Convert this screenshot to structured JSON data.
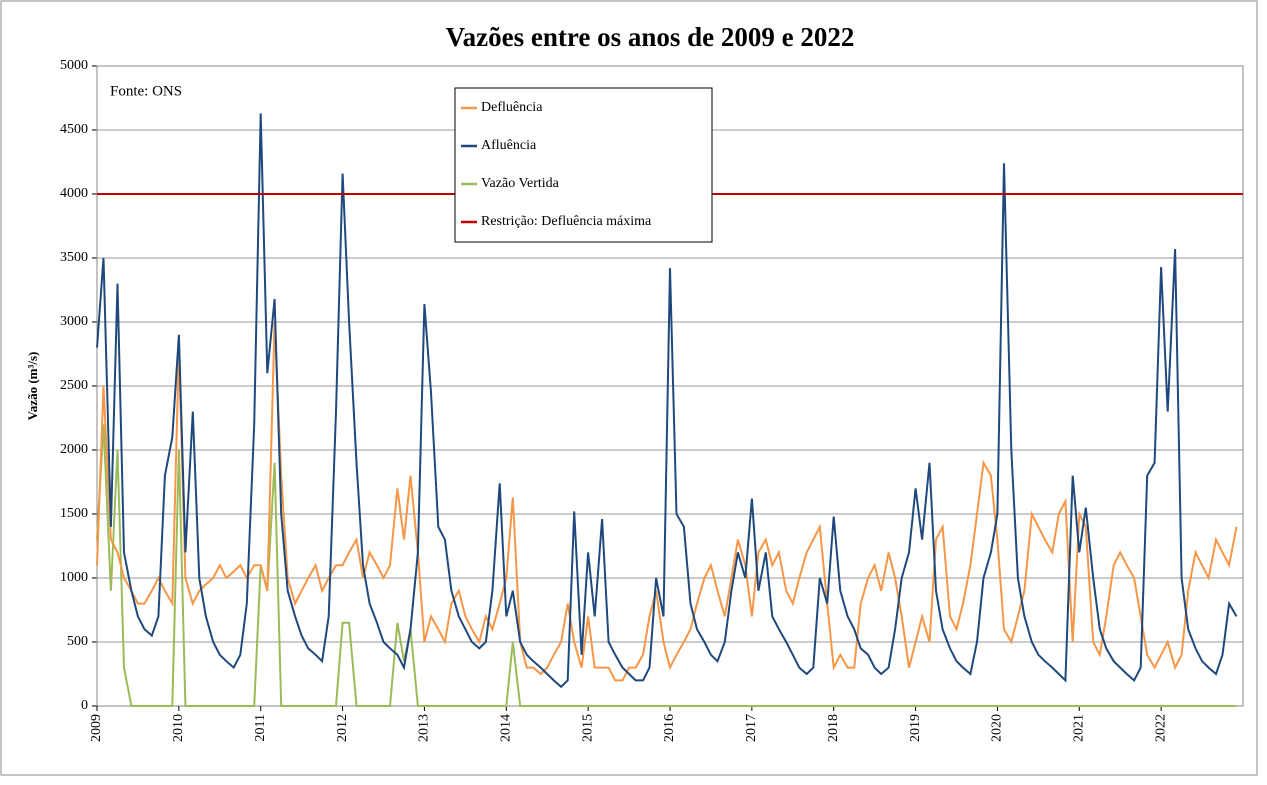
{
  "chart_data": {
    "type": "line",
    "title": "Vazões entre os anos de 2009 e 2022",
    "ylabel": "Vazão (m³/s)",
    "annotation": "Fonte: ONS",
    "x": [
      2009,
      2009.08,
      2009.17,
      2009.25,
      2009.33,
      2009.42,
      2009.5,
      2009.58,
      2009.67,
      2009.75,
      2009.83,
      2009.92,
      2010,
      2010.08,
      2010.17,
      2010.25,
      2010.33,
      2010.42,
      2010.5,
      2010.58,
      2010.67,
      2010.75,
      2010.83,
      2010.92,
      2011,
      2011.08,
      2011.17,
      2011.25,
      2011.33,
      2011.42,
      2011.5,
      2011.58,
      2011.67,
      2011.75,
      2011.83,
      2011.92,
      2012,
      2012.08,
      2012.17,
      2012.25,
      2012.33,
      2012.42,
      2012.5,
      2012.58,
      2012.67,
      2012.75,
      2012.83,
      2012.92,
      2013,
      2013.08,
      2013.17,
      2013.25,
      2013.33,
      2013.42,
      2013.5,
      2013.58,
      2013.67,
      2013.75,
      2013.83,
      2013.92,
      2014,
      2014.08,
      2014.17,
      2014.25,
      2014.33,
      2014.42,
      2014.5,
      2014.58,
      2014.67,
      2014.75,
      2014.83,
      2014.92,
      2015,
      2015.08,
      2015.17,
      2015.25,
      2015.33,
      2015.42,
      2015.5,
      2015.58,
      2015.67,
      2015.75,
      2015.83,
      2015.92,
      2016,
      2016.08,
      2016.17,
      2016.25,
      2016.33,
      2016.42,
      2016.5,
      2016.58,
      2016.67,
      2016.75,
      2016.83,
      2016.92,
      2017,
      2017.08,
      2017.17,
      2017.25,
      2017.33,
      2017.42,
      2017.5,
      2017.58,
      2017.67,
      2017.75,
      2017.83,
      2017.92,
      2018,
      2018.08,
      2018.17,
      2018.25,
      2018.33,
      2018.42,
      2018.5,
      2018.58,
      2018.67,
      2018.75,
      2018.83,
      2018.92,
      2019,
      2019.08,
      2019.17,
      2019.25,
      2019.33,
      2019.42,
      2019.5,
      2019.58,
      2019.67,
      2019.75,
      2019.83,
      2019.92,
      2020,
      2020.08,
      2020.17,
      2020.25,
      2020.33,
      2020.42,
      2020.5,
      2020.58,
      2020.67,
      2020.75,
      2020.83,
      2020.92,
      2021,
      2021.08,
      2021.17,
      2021.25,
      2021.33,
      2021.42,
      2021.5,
      2021.58,
      2021.67,
      2021.75,
      2021.83,
      2021.92,
      2022,
      2022.08,
      2022.17,
      2022.25,
      2022.33,
      2022.42,
      2022.5,
      2022.58,
      2022.67,
      2022.75,
      2022.83,
      2022.92
    ],
    "series": [
      {
        "name": "Defluência",
        "color": "#f79646",
        "values": [
          1100,
          2500,
          1300,
          1200,
          1000,
          900,
          800,
          800,
          900,
          1000,
          900,
          800,
          2800,
          1000,
          800,
          900,
          950,
          1000,
          1100,
          1000,
          1050,
          1100,
          1000,
          1100,
          1100,
          900,
          3000,
          1800,
          1000,
          800,
          900,
          1000,
          1100,
          900,
          1000,
          1100,
          1100,
          1200,
          1300,
          1000,
          1200,
          1100,
          1000,
          1100,
          1700,
          1300,
          1800,
          1200,
          500,
          700,
          600,
          500,
          800,
          900,
          700,
          600,
          500,
          700,
          600,
          800,
          1000,
          1630,
          500,
          300,
          300,
          250,
          300,
          400,
          500,
          800,
          500,
          300,
          700,
          300,
          300,
          300,
          200,
          200,
          300,
          300,
          400,
          700,
          900,
          500,
          300,
          400,
          500,
          600,
          800,
          1000,
          1100,
          900,
          700,
          1000,
          1300,
          1100,
          700,
          1200,
          1300,
          1100,
          1200,
          900,
          800,
          1000,
          1200,
          1300,
          1400,
          800,
          300,
          400,
          300,
          300,
          800,
          1000,
          1100,
          900,
          1200,
          1000,
          700,
          300,
          500,
          700,
          500,
          1300,
          1400,
          700,
          600,
          800,
          1100,
          1500,
          1900,
          1800,
          1300,
          600,
          500,
          700,
          900,
          1500,
          1400,
          1300,
          1200,
          1500,
          1600,
          500,
          1500,
          1400,
          500,
          400,
          700,
          1100,
          1200,
          1100,
          1000,
          700,
          400,
          300,
          400,
          500,
          300,
          400,
          900,
          1200,
          1100,
          1000,
          1300,
          1200,
          1100,
          1400
        ]
      },
      {
        "name": "Afluência",
        "color": "#1f497d",
        "values": [
          2800,
          3500,
          1400,
          3300,
          1200,
          900,
          700,
          600,
          550,
          700,
          1800,
          2100,
          2900,
          1200,
          2300,
          1000,
          700,
          500,
          400,
          350,
          300,
          400,
          800,
          2200,
          4630,
          2600,
          3180,
          1500,
          900,
          700,
          550,
          450,
          400,
          350,
          700,
          2300,
          4160,
          3000,
          1900,
          1100,
          800,
          650,
          500,
          450,
          400,
          300,
          600,
          1200,
          3140,
          2450,
          1400,
          1300,
          900,
          700,
          600,
          500,
          450,
          500,
          900,
          1740,
          700,
          900,
          500,
          400,
          350,
          300,
          250,
          200,
          150,
          200,
          1520,
          400,
          1200,
          700,
          1460,
          500,
          400,
          300,
          250,
          200,
          200,
          300,
          1000,
          700,
          3420,
          1500,
          1400,
          800,
          600,
          500,
          400,
          350,
          500,
          900,
          1200,
          1000,
          1620,
          900,
          1200,
          700,
          600,
          500,
          400,
          300,
          250,
          300,
          1000,
          800,
          1480,
          900,
          700,
          600,
          450,
          400,
          300,
          250,
          300,
          600,
          1000,
          1200,
          1700,
          1300,
          1900,
          900,
          600,
          450,
          350,
          300,
          250,
          500,
          1000,
          1200,
          1500,
          4240,
          2000,
          1000,
          700,
          500,
          400,
          350,
          300,
          250,
          200,
          1800,
          1200,
          1550,
          1000,
          600,
          450,
          350,
          300,
          250,
          200,
          300,
          1800,
          1900,
          3430,
          2300,
          3570,
          1000,
          600,
          450,
          350,
          300,
          250,
          400,
          800,
          700
        ]
      },
      {
        "name": "Vazão Vertida",
        "color": "#9bbb59",
        "values": [
          1300,
          2200,
          900,
          2000,
          300,
          0,
          0,
          0,
          0,
          0,
          0,
          0,
          2000,
          0,
          0,
          0,
          0,
          0,
          0,
          0,
          0,
          0,
          0,
          0,
          1100,
          900,
          1900,
          0,
          0,
          0,
          0,
          0,
          0,
          0,
          0,
          0,
          650,
          650,
          0,
          0,
          0,
          0,
          0,
          0,
          650,
          350,
          600,
          0,
          0,
          0,
          0,
          0,
          0,
          0,
          0,
          0,
          0,
          0,
          0,
          0,
          0,
          500,
          0,
          0,
          0,
          0,
          0,
          0,
          0,
          0,
          0,
          0,
          0,
          0,
          0,
          0,
          0,
          0,
          0,
          0,
          0,
          0,
          0,
          0,
          0,
          0,
          0,
          0,
          0,
          0,
          0,
          0,
          0,
          0,
          0,
          0,
          0,
          0,
          0,
          0,
          0,
          0,
          0,
          0,
          0,
          0,
          0,
          0,
          0,
          0,
          0,
          0,
          0,
          0,
          0,
          0,
          0,
          0,
          0,
          0,
          0,
          0,
          0,
          0,
          0,
          0,
          0,
          0,
          0,
          0,
          0,
          0,
          0,
          0,
          0,
          0,
          0,
          0,
          0,
          0,
          0,
          0,
          0,
          0,
          0,
          0,
          0,
          0,
          0,
          0,
          0,
          0,
          0,
          0,
          0,
          0,
          0,
          0,
          0,
          0,
          0,
          0,
          0,
          0,
          0,
          0,
          0,
          0
        ]
      }
    ],
    "hline": {
      "name": "Restrição: Defluência máxima",
      "value": 4000,
      "color": "#c00000"
    },
    "xlim": [
      2009,
      2023
    ],
    "xticks": [
      2009,
      2010,
      2011,
      2012,
      2013,
      2014,
      2015,
      2016,
      2017,
      2018,
      2019,
      2020,
      2021,
      2022
    ],
    "ylim": [
      0,
      5000
    ],
    "yticks": [
      0,
      500,
      1000,
      1500,
      2000,
      2500,
      3000,
      3500,
      4000,
      4500,
      5000
    ],
    "grid": true,
    "legend": "top"
  }
}
